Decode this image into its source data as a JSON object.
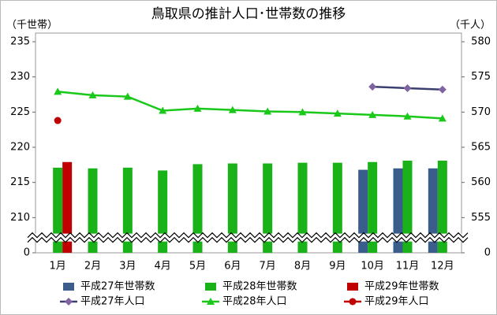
{
  "chart_data": {
    "type": "combo",
    "title": "鳥取県の推計人口･世帯数の推移",
    "y_label": "（千世帯）",
    "y2_label": "（千人）",
    "categories": [
      "1月",
      "2月",
      "3月",
      "4月",
      "5月",
      "6月",
      "7月",
      "8月",
      "9月",
      "10月",
      "11月",
      "12月"
    ],
    "ylim": [
      0,
      235
    ],
    "yticks": [
      0,
      210,
      215,
      220,
      225,
      230,
      235
    ],
    "y_break": [
      0,
      210
    ],
    "y2lim": [
      0,
      580
    ],
    "y2ticks": [
      0,
      555,
      560,
      565,
      570,
      575,
      580
    ],
    "y2_break": [
      0,
      555
    ],
    "series": [
      {
        "name": "平成27年世帯数",
        "type": "bar",
        "color": "#3a5d8c",
        "values": [
          null,
          null,
          null,
          null,
          null,
          null,
          null,
          null,
          null,
          216.8,
          217.0,
          217.0
        ]
      },
      {
        "name": "平成28年世帯数",
        "type": "bar",
        "color": "#19b219",
        "values": [
          217.1,
          217.0,
          217.1,
          216.7,
          217.6,
          217.7,
          217.7,
          217.8,
          217.8,
          217.9,
          218.1,
          218.1
        ]
      },
      {
        "name": "平成29年世帯数",
        "type": "bar",
        "color": "#c00000",
        "values": [
          217.9,
          null,
          null,
          null,
          null,
          null,
          null,
          null,
          null,
          null,
          null,
          null
        ]
      },
      {
        "name": "平成27年人口",
        "type": "line",
        "axis": "y2",
        "color": "#3b3f70",
        "marker": "diamond",
        "marker_color": "#8064a2",
        "values": [
          null,
          null,
          null,
          null,
          null,
          null,
          null,
          null,
          null,
          573.6,
          573.4,
          573.2
        ]
      },
      {
        "name": "平成28年人口",
        "type": "line",
        "axis": "y2",
        "color": "#19c819",
        "marker": "triangle",
        "marker_color": "#19c819",
        "values": [
          572.9,
          572.4,
          572.2,
          570.2,
          570.5,
          570.3,
          570.1,
          570.0,
          569.8,
          569.6,
          569.4,
          569.1
        ]
      },
      {
        "name": "平成29年人口",
        "type": "line",
        "axis": "y2",
        "color": "#c00000",
        "marker": "circle",
        "marker_color": "#c00000",
        "values": [
          568.8,
          null,
          null,
          null,
          null,
          null,
          null,
          null,
          null,
          null,
          null,
          null
        ]
      }
    ]
  }
}
